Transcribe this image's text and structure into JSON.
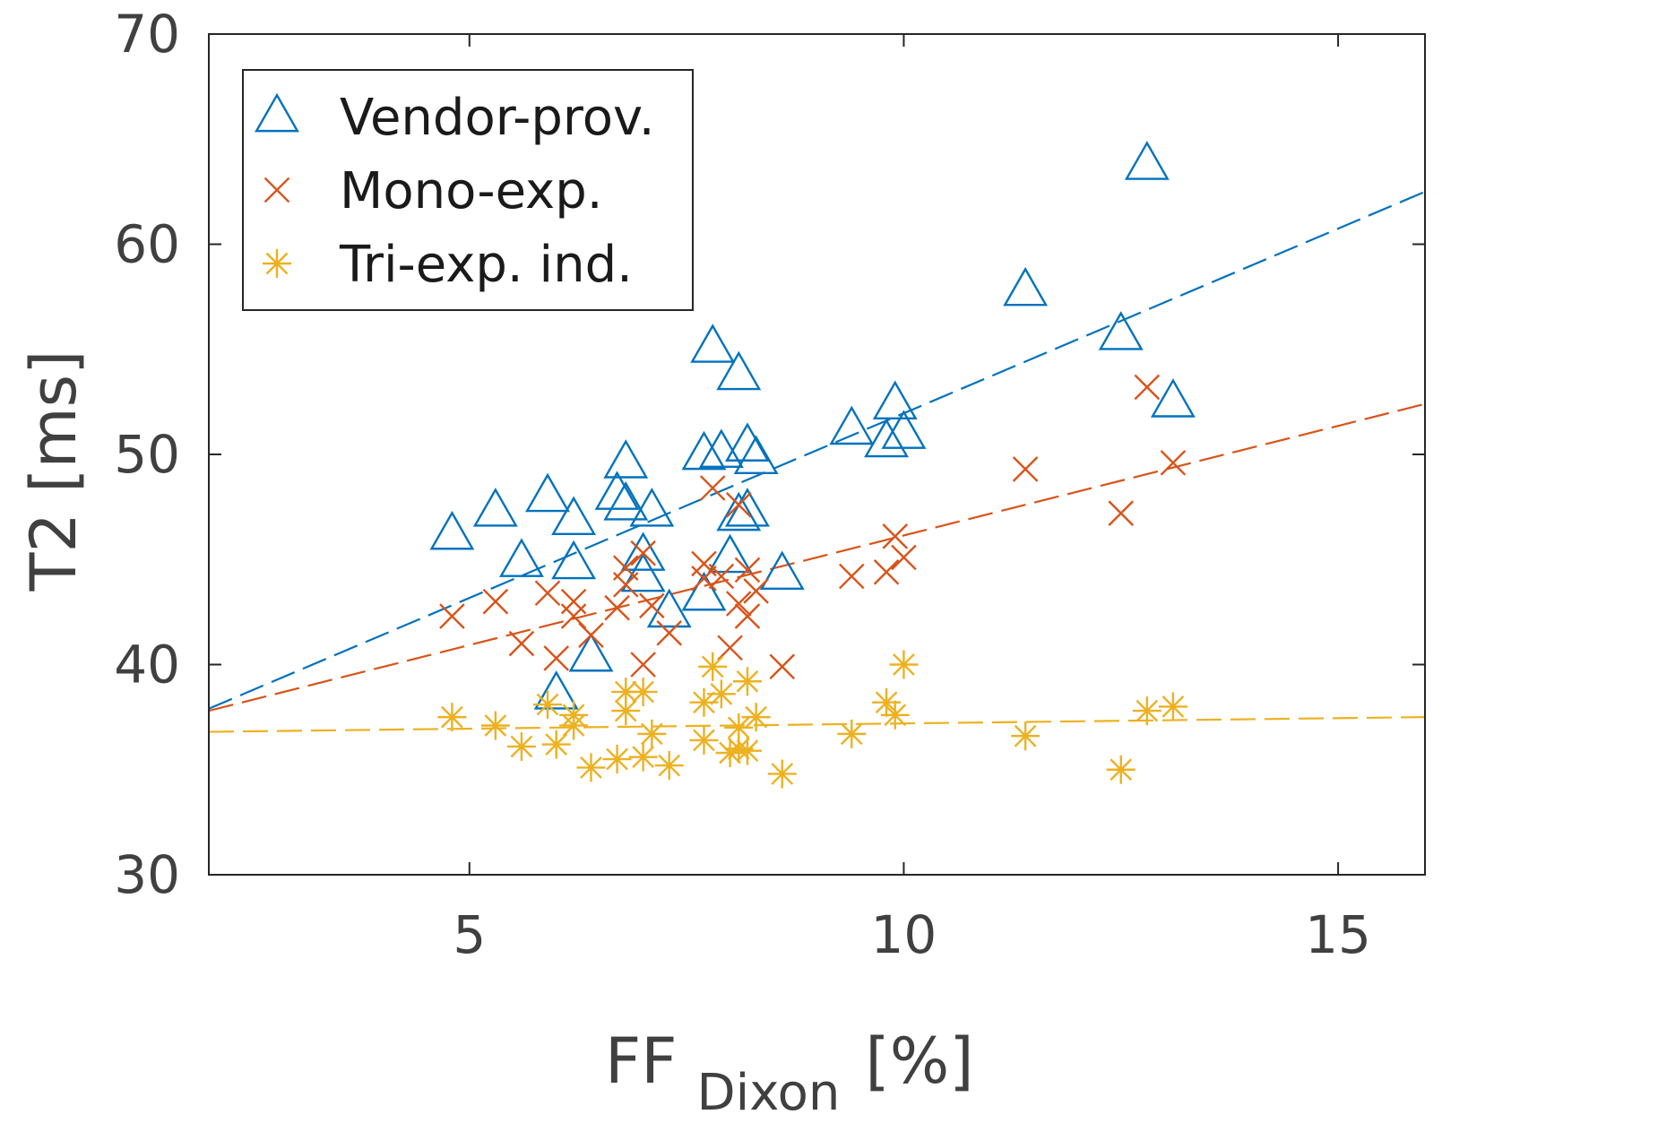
{
  "chart_data": {
    "type": "scatter",
    "title": "",
    "xlabel": "FF",
    "xlabel_subscript": "Dixon",
    "xlabel_unit": "[%]",
    "ylabel": "T2 [ms]",
    "xlim": [
      2,
      16
    ],
    "ylim": [
      30,
      70
    ],
    "xticks": [
      5,
      10,
      15
    ],
    "yticks": [
      30,
      40,
      50,
      60,
      70
    ],
    "grid": false,
    "legend_position": "top-left",
    "x": [
      4.8,
      5.3,
      5.6,
      5.9,
      6.0,
      6.2,
      6.2,
      6.4,
      6.7,
      6.8,
      6.8,
      7.0,
      7.0,
      7.1,
      7.3,
      7.7,
      7.7,
      7.8,
      7.9,
      8.0,
      8.1,
      8.1,
      8.2,
      8.2,
      8.3,
      8.6,
      9.4,
      9.8,
      9.9,
      10.0,
      11.4,
      12.5,
      12.8,
      13.1
    ],
    "series": [
      {
        "name": "Vendor-prov.",
        "marker": "triangle",
        "color": "#0072BD",
        "values": [
          46.2,
          47.3,
          44.9,
          48.0,
          38.6,
          46.9,
          44.8,
          40.4,
          48.1,
          47.6,
          49.6,
          45.2,
          44.2,
          47.3,
          42.5,
          50.0,
          43.3,
          55.1,
          50.1,
          45.1,
          47.1,
          53.8,
          47.3,
          50.4,
          49.8,
          44.3,
          51.2,
          50.6,
          52.4,
          51.0,
          57.8,
          55.7,
          63.8,
          52.5
        ],
        "fit": {
          "x": [
            2,
            16
          ],
          "y": [
            37.9,
            62.5
          ]
        }
      },
      {
        "name": "Mono-exp.",
        "marker": "x",
        "color": "#D95319",
        "values": [
          42.3,
          43.0,
          41.0,
          43.4,
          40.3,
          43.0,
          42.3,
          41.4,
          42.7,
          44.6,
          43.8,
          45.3,
          40.0,
          42.8,
          41.5,
          44.8,
          44.1,
          48.4,
          44.2,
          40.8,
          42.9,
          47.6,
          42.3,
          44.5,
          43.5,
          39.9,
          44.2,
          44.4,
          46.1,
          45.1,
          49.3,
          47.2,
          53.2,
          49.6
        ],
        "fit": {
          "x": [
            2,
            16
          ],
          "y": [
            37.8,
            52.4
          ]
        }
      },
      {
        "name": "Tri-exp. ind.",
        "marker": "asterisk",
        "color": "#EDB120",
        "values": [
          37.5,
          37.1,
          36.1,
          38.1,
          36.2,
          37.6,
          37.1,
          35.1,
          35.5,
          38.7,
          37.8,
          35.6,
          38.7,
          36.7,
          35.2,
          36.4,
          38.2,
          39.9,
          38.6,
          35.8,
          36.0,
          37.0,
          39.2,
          35.9,
          37.5,
          34.8,
          36.7,
          38.2,
          37.6,
          40.0,
          36.6,
          35.0,
          37.8,
          38.0
        ],
        "fit": {
          "x": [
            2,
            16
          ],
          "y": [
            36.8,
            37.5
          ]
        }
      }
    ]
  }
}
